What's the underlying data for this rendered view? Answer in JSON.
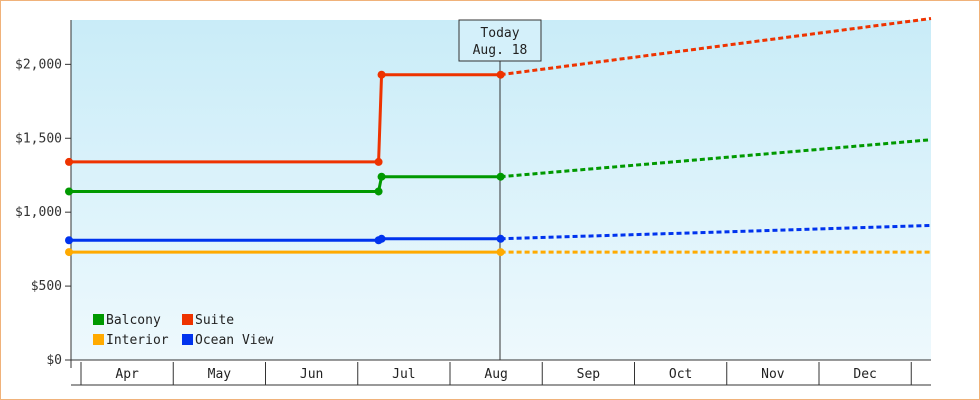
{
  "chart_data": {
    "type": "line",
    "title": "",
    "xlabel": "",
    "ylabel": "",
    "x_categories": [
      "Apr",
      "May",
      "Jun",
      "Jul",
      "Aug",
      "Sep",
      "Oct",
      "Nov",
      "Dec"
    ],
    "ylim": [
      0,
      2300
    ],
    "y_ticks": [
      0,
      500,
      1000,
      1500,
      2000
    ],
    "y_tick_labels": [
      "$0",
      "$500",
      "$1,000",
      "$1,500",
      "$2,000"
    ],
    "grid": false,
    "legend_position": "bottom-left",
    "today_marker": {
      "line1": "Today",
      "line2": "Aug. 18"
    },
    "series": [
      {
        "name": "Balcony",
        "color": "#009900",
        "actual": [
          [
            "Apr 1",
            1140
          ],
          [
            "Jul 8",
            1140
          ],
          [
            "Jul 9",
            1240
          ],
          [
            "Aug 18",
            1240
          ]
        ],
        "projected": [
          [
            "Aug 18",
            1240
          ],
          [
            "Dec 31",
            1490
          ]
        ]
      },
      {
        "name": "Suite",
        "color": "#ee3300",
        "actual": [
          [
            "Apr 1",
            1340
          ],
          [
            "Jul 8",
            1340
          ],
          [
            "Jul 9",
            1930
          ],
          [
            "Aug 18",
            1930
          ]
        ],
        "projected": [
          [
            "Aug 18",
            1930
          ],
          [
            "Dec 31",
            2310
          ]
        ]
      },
      {
        "name": "Interior",
        "color": "#ffaa00",
        "actual": [
          [
            "Apr 1",
            730
          ],
          [
            "Aug 18",
            730
          ]
        ],
        "projected": [
          [
            "Aug 18",
            730
          ],
          [
            "Dec 31",
            730
          ]
        ]
      },
      {
        "name": "Ocean View",
        "color": "#0033ee",
        "actual": [
          [
            "Apr 1",
            810
          ],
          [
            "Jul 8",
            810
          ],
          [
            "Jul 9",
            820
          ],
          [
            "Aug 18",
            820
          ]
        ],
        "projected": [
          [
            "Aug 18",
            820
          ],
          [
            "Dec 31",
            910
          ]
        ]
      }
    ],
    "legend": [
      {
        "name": "Balcony",
        "color": "#009900"
      },
      {
        "name": "Suite",
        "color": "#ee3300"
      },
      {
        "name": "Interior",
        "color": "#ffaa00"
      },
      {
        "name": "Ocean View",
        "color": "#0033ee"
      }
    ]
  }
}
